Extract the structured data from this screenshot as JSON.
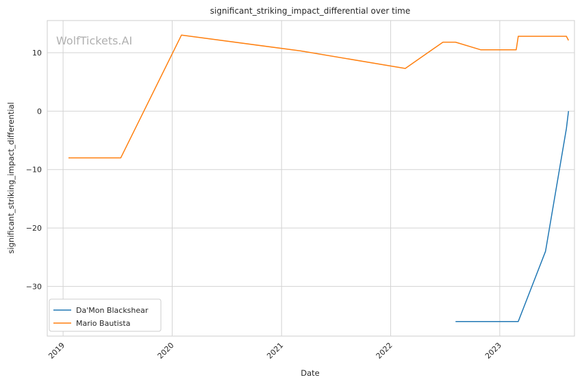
{
  "chart_data": {
    "type": "line",
    "title": "significant_striking_impact_differential over time",
    "xlabel": "Date",
    "ylabel": "significant_striking_impact_differential",
    "watermark": "WolfTickets.AI",
    "x_ticks": [
      "2019",
      "2020",
      "2021",
      "2022",
      "2023"
    ],
    "y_ticks": [
      "10",
      "0",
      "−10",
      "−20",
      "−30"
    ],
    "y_tick_values": [
      10,
      0,
      -10,
      -20,
      -30
    ],
    "xlim": [
      "2018-11-09",
      "2023-09-08"
    ],
    "ylim": [
      -38.5,
      15.5
    ],
    "grid": true,
    "legend_position": "lower-left",
    "series": [
      {
        "name": "Da'Mon Blackshear",
        "color": "#1f77b4",
        "points": [
          {
            "x": "2022-08-06",
            "y": -36
          },
          {
            "x": "2023-03-04",
            "y": -36
          },
          {
            "x": "2023-06-03",
            "y": -24
          },
          {
            "x": "2023-08-12",
            "y": -3
          },
          {
            "x": "2023-08-19",
            "y": 0
          }
        ]
      },
      {
        "name": "Mario Bautista",
        "color": "#ff7f0e",
        "points": [
          {
            "x": "2019-01-19",
            "y": -8
          },
          {
            "x": "2019-07-13",
            "y": -8
          },
          {
            "x": "2020-02-01",
            "y": 13
          },
          {
            "x": "2021-03-06",
            "y": 10.3
          },
          {
            "x": "2022-02-19",
            "y": 7.3
          },
          {
            "x": "2022-06-25",
            "y": 11.8
          },
          {
            "x": "2022-08-06",
            "y": 11.8
          },
          {
            "x": "2022-10-29",
            "y": 10.5
          },
          {
            "x": "2023-02-25",
            "y": 10.5
          },
          {
            "x": "2023-03-04",
            "y": 12.8
          },
          {
            "x": "2023-08-12",
            "y": 12.8
          },
          {
            "x": "2023-08-19",
            "y": 12.1
          }
        ]
      }
    ]
  }
}
